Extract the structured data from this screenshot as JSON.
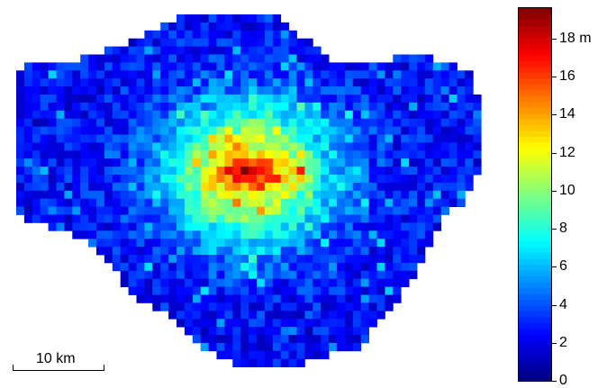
{
  "map": {
    "scale_bar_label": "10 km"
  },
  "colorbar": {
    "ticks": [
      {
        "value": 0,
        "label": "0"
      },
      {
        "value": 2,
        "label": "2"
      },
      {
        "value": 4,
        "label": "4"
      },
      {
        "value": 6,
        "label": "6"
      },
      {
        "value": 8,
        "label": "8"
      },
      {
        "value": 10,
        "label": "10"
      },
      {
        "value": 12,
        "label": "12"
      },
      {
        "value": 14,
        "label": "14"
      },
      {
        "value": 16,
        "label": "16"
      },
      {
        "value": 18,
        "label": "18 m"
      }
    ],
    "min": 0,
    "max": 19.6,
    "colormap": "jet"
  }
}
